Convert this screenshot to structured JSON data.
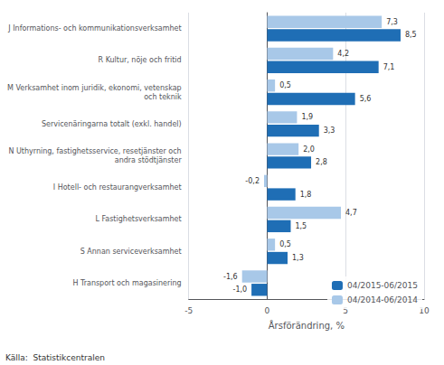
{
  "chart_data": {
    "type": "bar",
    "orientation": "horizontal",
    "categories": [
      "H Transport och magasinering",
      "S Annan serviceverksamhet",
      "L Fastighetsverksamhet",
      "I Hotell- och restaurangverksamhet",
      "N Uthyrning, fastighetsservice, resetjänster och\nandra stödtjänster",
      "Servicenäringarna totalt (exkl. handel)",
      "M Verksamhet inom juridik, ekonomi, vetenskap\noch teknik",
      "R Kultur, nöje och fritid",
      "J Informations- och kommunikationsverksamhet"
    ],
    "series": [
      {
        "name": "04/2015-06/2015",
        "color": "#1f6eb5",
        "values": [
          -1.0,
          1.3,
          1.5,
          1.8,
          2.8,
          3.3,
          5.6,
          7.1,
          8.5
        ],
        "value_labels": [
          "-1,0",
          "1,3",
          "1,5",
          "1,8",
          "2,8",
          "3,3",
          "5,6",
          "7,1",
          "8,5"
        ]
      },
      {
        "name": "04/2014-06/2014",
        "color": "#a8c8e8",
        "values": [
          -1.6,
          0.5,
          4.7,
          -0.2,
          2.0,
          1.9,
          0.5,
          4.2,
          7.3
        ],
        "value_labels": [
          "-1,6",
          "0,5",
          "4,7",
          "-0,2",
          "2,0",
          "1,9",
          "0,5",
          "4,2",
          "7,3"
        ]
      }
    ],
    "xlabel": "Årsförändring, %",
    "annotations": [
      "Källa:  Statistikcentralen"
    ],
    "xlim": [
      -5,
      10
    ],
    "xticks": [
      -5,
      0,
      5,
      10
    ],
    "grid": true,
    "legend": "lower right",
    "data_labels": true
  }
}
